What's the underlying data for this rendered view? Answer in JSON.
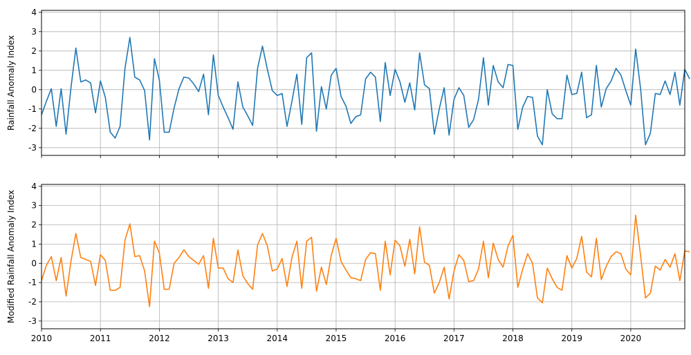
{
  "chart_data": [
    {
      "type": "line",
      "ylabel": "Rainfall Anomaly Index",
      "xlim": [
        "2010-01",
        "2020-12"
      ],
      "ylim": [
        -3.4,
        4.1
      ],
      "yticks": [
        -3,
        -2,
        -1,
        0,
        1,
        2,
        3,
        4
      ],
      "xtick_labels": [],
      "grid": true,
      "color": "#1f77b4",
      "series": [
        {
          "x_start": "2010-01",
          "frequency": "monthly",
          "values": [
            -1.3,
            -0.6,
            0.05,
            -1.9,
            0.05,
            -2.3,
            0.1,
            2.15,
            0.4,
            0.5,
            0.35,
            -1.2,
            0.45,
            -0.4,
            -2.2,
            -2.5,
            -1.9,
            1.1,
            2.7,
            0.65,
            0.5,
            -0.05,
            -2.6,
            1.6,
            0.5,
            -2.2,
            -2.2,
            -0.95,
            0.05,
            0.65,
            0.6,
            0.3,
            -0.1,
            0.8,
            -1.3,
            1.8,
            -0.3,
            -0.9,
            -1.45,
            -2.05,
            0.4,
            -0.9,
            -1.35,
            -1.85,
            1.1,
            2.25,
            1.05,
            -0.05,
            -0.3,
            -0.2,
            -1.9,
            -0.6,
            0.8,
            -1.8,
            1.65,
            1.9,
            -2.15,
            0.15,
            -1.0,
            0.75,
            1.1,
            -0.35,
            -0.85,
            -1.75,
            -1.4,
            -1.3,
            0.55,
            0.9,
            0.65,
            -1.65,
            1.4,
            -0.3,
            1.05,
            0.4,
            -0.65,
            0.35,
            -1.05,
            1.9,
            0.25,
            0.05,
            -2.3,
            -1.0,
            0.1,
            -2.35,
            -0.5,
            0.1,
            -0.3,
            -1.95,
            -1.55,
            -0.5,
            1.65,
            -0.8,
            1.25,
            0.4,
            0.1,
            1.3,
            1.25,
            -2.05,
            -0.9,
            -0.35,
            -0.4,
            -2.4,
            -2.85,
            0.0,
            -1.25,
            -1.5,
            -1.5,
            0.75,
            -0.25,
            -0.2,
            0.9,
            -1.45,
            -1.3,
            1.25,
            -0.9,
            0.05,
            0.45,
            1.1,
            0.75,
            -0.05,
            -0.8,
            2.1,
            0.05,
            -2.85,
            -2.25,
            -0.2,
            -0.25,
            0.45,
            -0.25,
            0.9,
            -0.8,
            1.05,
            0.55
          ]
        }
      ]
    },
    {
      "type": "line",
      "ylabel": "Modified Rainfall Anomaly Index",
      "xlim": [
        "2010-01",
        "2020-12"
      ],
      "ylim": [
        -3.4,
        4.1
      ],
      "yticks": [
        -3,
        -2,
        -1,
        0,
        1,
        2,
        3,
        4
      ],
      "xtick_labels": [
        "2010",
        "2011",
        "2012",
        "2013",
        "2014",
        "2015",
        "2016",
        "2017",
        "2018",
        "2019",
        "2020"
      ],
      "grid": true,
      "color": "#ff7f0e",
      "series": [
        {
          "x_start": "2010-01",
          "frequency": "monthly",
          "values": [
            -0.9,
            -0.1,
            0.35,
            -0.9,
            0.3,
            -1.7,
            0.1,
            1.55,
            0.3,
            0.2,
            0.1,
            -1.15,
            0.45,
            0.15,
            -1.4,
            -1.4,
            -1.25,
            1.2,
            2.05,
            0.35,
            0.4,
            -0.4,
            -2.25,
            1.15,
            0.55,
            -1.35,
            -1.35,
            0.0,
            0.3,
            0.7,
            0.35,
            0.15,
            -0.05,
            0.4,
            -1.3,
            1.3,
            -0.25,
            -0.25,
            -0.8,
            -1.0,
            0.7,
            -0.65,
            -1.05,
            -1.35,
            0.95,
            1.55,
            0.9,
            -0.4,
            -0.3,
            0.25,
            -1.2,
            0.3,
            1.15,
            -1.3,
            1.15,
            1.35,
            -1.45,
            -0.2,
            -1.1,
            0.4,
            1.3,
            0.1,
            -0.35,
            -0.75,
            -0.8,
            -0.9,
            0.2,
            0.55,
            0.5,
            -1.4,
            1.15,
            -0.6,
            1.2,
            0.9,
            -0.15,
            1.25,
            -0.55,
            1.9,
            0.05,
            -0.1,
            -1.55,
            -1.0,
            -0.2,
            -1.85,
            -0.4,
            0.45,
            0.15,
            -0.95,
            -0.9,
            -0.3,
            1.15,
            -0.75,
            1.05,
            0.2,
            -0.2,
            0.9,
            1.45,
            -1.25,
            -0.3,
            0.5,
            0.0,
            -1.8,
            -2.05,
            -0.25,
            -0.8,
            -1.25,
            -1.4,
            0.4,
            -0.25,
            0.25,
            1.4,
            -0.45,
            -0.7,
            1.3,
            -0.85,
            -0.15,
            0.35,
            0.6,
            0.5,
            -0.3,
            -0.6,
            2.5,
            0.4,
            -1.8,
            -1.55,
            -0.15,
            -0.35,
            0.2,
            -0.2,
            0.5,
            -0.9,
            0.65,
            0.6
          ]
        }
      ]
    }
  ]
}
